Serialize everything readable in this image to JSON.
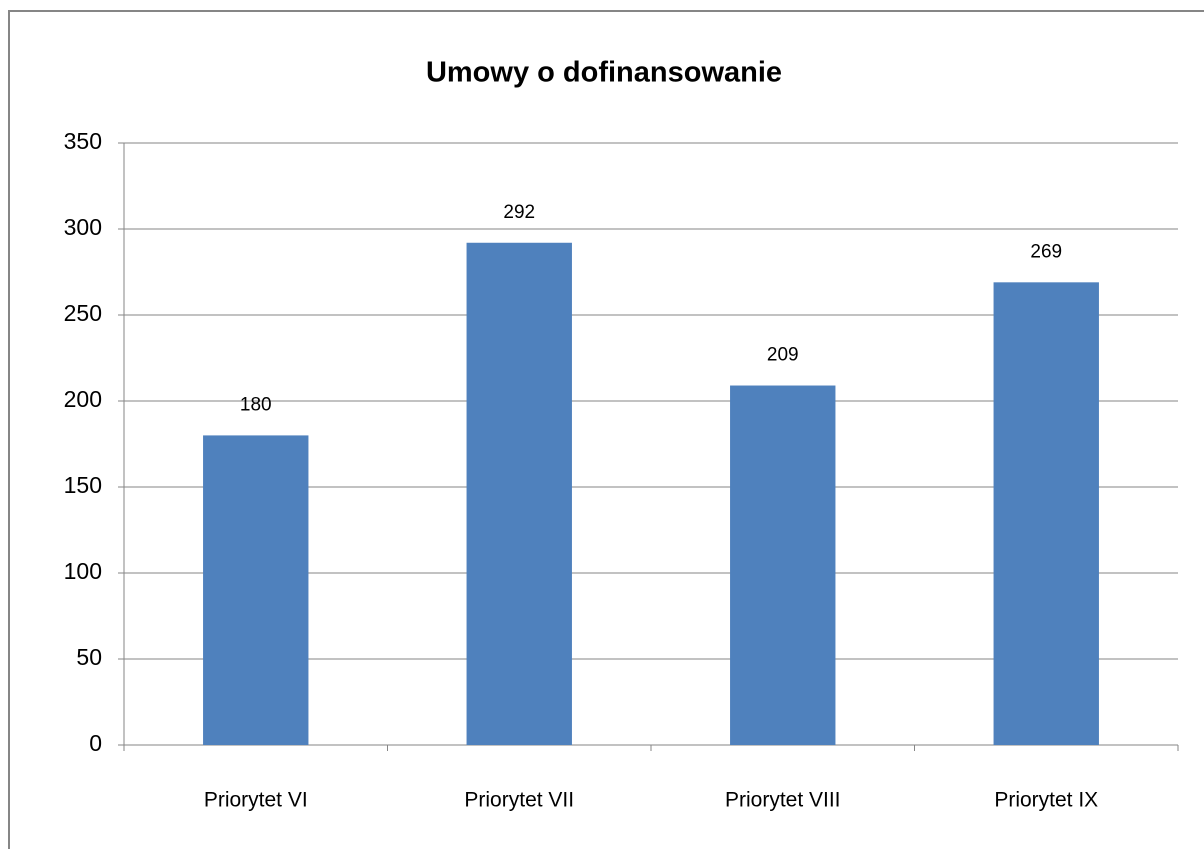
{
  "chart_data": {
    "type": "bar",
    "title": "Umowy o dofinansowanie",
    "categories": [
      "Priorytet VI",
      "Priorytet VII",
      "Priorytet VIII",
      "Priorytet IX"
    ],
    "values": [
      180,
      292,
      209,
      269
    ],
    "color": "#4f81bd",
    "ylim": [
      0,
      350
    ],
    "yticks": [
      0,
      50,
      100,
      150,
      200,
      250,
      300,
      350
    ],
    "grid": true
  }
}
